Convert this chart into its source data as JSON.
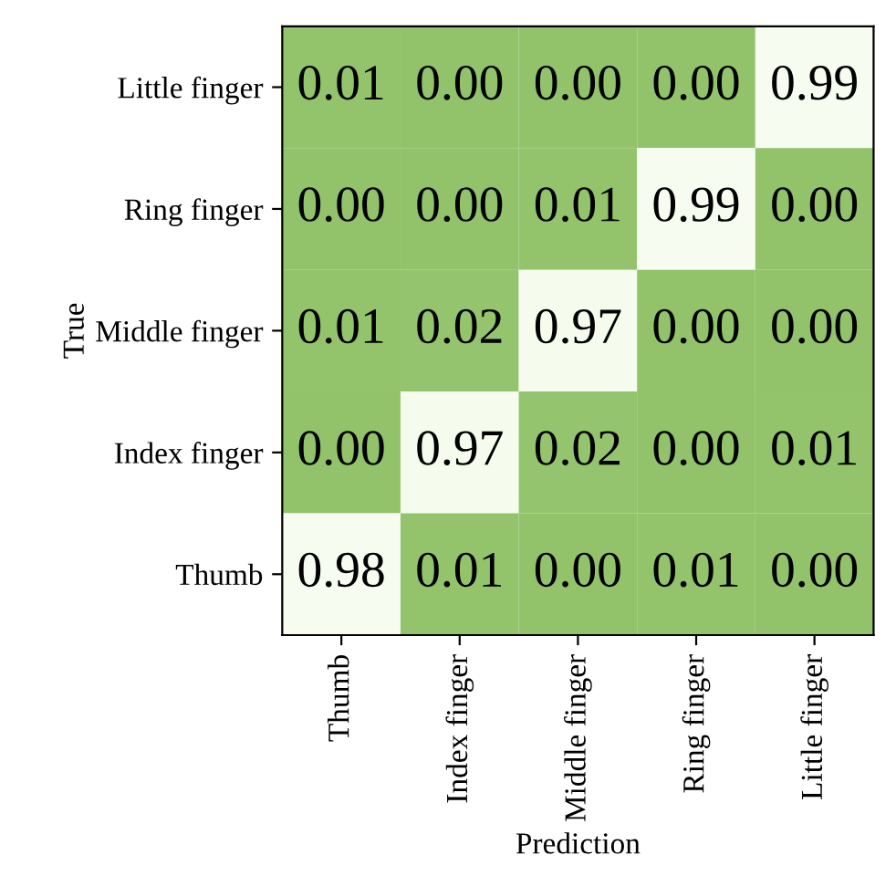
{
  "chart_data": {
    "type": "heatmap",
    "xlabel": "Prediction",
    "ylabel": "True",
    "categories": [
      "Thumb",
      "Index finger",
      "Middle finger",
      "Ring finger",
      "Little finger"
    ],
    "y_categories": [
      "Little finger",
      "Ring finger",
      "Middle finger",
      "Index finger",
      "Thumb"
    ],
    "cells": [
      [
        0.01,
        0.0,
        0.0,
        0.0,
        0.99
      ],
      [
        0.0,
        0.0,
        0.01,
        0.99,
        0.0
      ],
      [
        0.01,
        0.02,
        0.97,
        0.0,
        0.0
      ],
      [
        0.0,
        0.97,
        0.02,
        0.0,
        0.01
      ],
      [
        0.98,
        0.01,
        0.0,
        0.01,
        0.0
      ]
    ],
    "cell_labels": [
      [
        "0.01",
        "0.00",
        "0.00",
        "0.00",
        "0.99"
      ],
      [
        "0.00",
        "0.00",
        "0.01",
        "0.99",
        "0.00"
      ],
      [
        "0.01",
        "0.02",
        "0.97",
        "0.00",
        "0.00"
      ],
      [
        "0.00",
        "0.97",
        "0.02",
        "0.00",
        "0.01"
      ],
      [
        "0.98",
        "0.01",
        "0.00",
        "0.01",
        "0.00"
      ]
    ],
    "colors": [
      "#92c36a",
      "#f7fcf0"
    ]
  }
}
